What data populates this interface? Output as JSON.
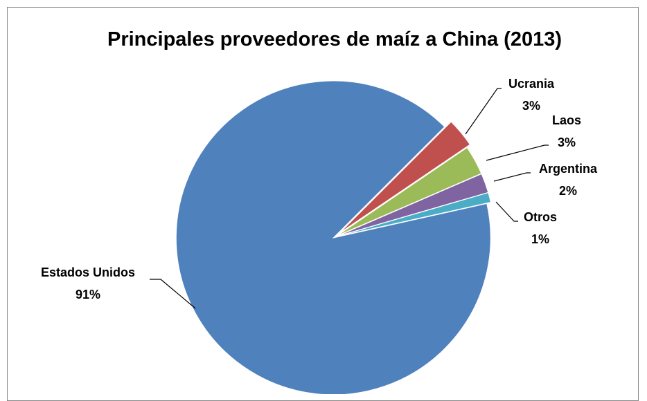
{
  "chart_data": {
    "type": "pie",
    "title": "Principales proveedores de maíz a China (2013)",
    "categories": [
      "Estados Unidos",
      "Ucrania",
      "Laos",
      "Argentina",
      "Otros"
    ],
    "values": [
      91,
      3,
      3,
      2,
      1
    ],
    "value_labels": [
      "91%",
      "3%",
      "3%",
      "2%",
      "1%"
    ],
    "colors": [
      "#4f81bd",
      "#c0504d",
      "#9bbb59",
      "#8064a2",
      "#4bacc6"
    ]
  }
}
